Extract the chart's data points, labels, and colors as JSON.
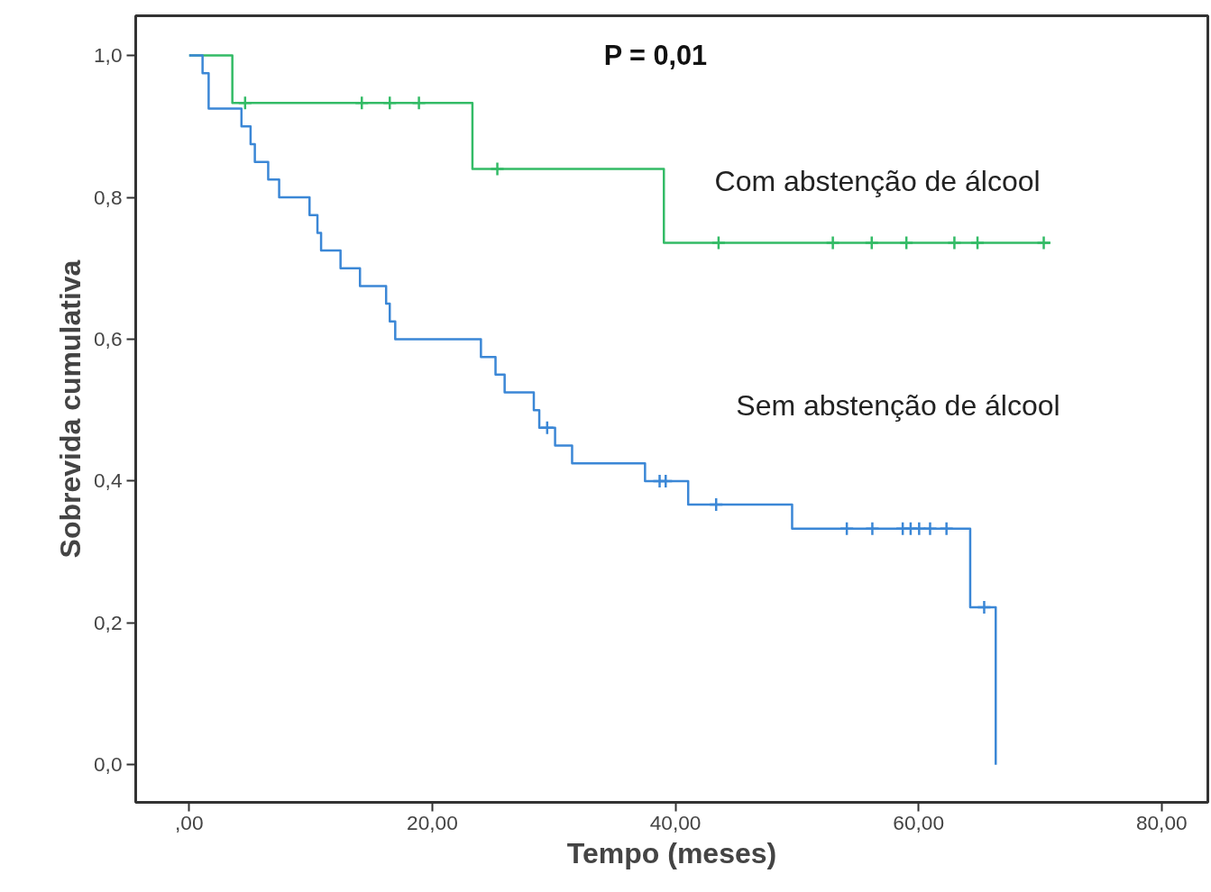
{
  "chart_data": {
    "type": "step",
    "xlabel": "Tempo (meses)",
    "ylabel": "Sobrevida cumulativa",
    "annotations": [
      "P = 0,01"
    ],
    "xlim": [
      -4.4,
      83.8
    ],
    "ylim": [
      -0.053,
      1.056
    ],
    "xticks": [
      {
        "value": 0,
        "label": ",00"
      },
      {
        "value": 20,
        "label": "20,00"
      },
      {
        "value": 40,
        "label": "40,00"
      },
      {
        "value": 60,
        "label": "60,00"
      },
      {
        "value": 80,
        "label": "80,00"
      }
    ],
    "yticks": [
      {
        "value": 0,
        "label": "0,0"
      },
      {
        "value": 0.2,
        "label": "0,2"
      },
      {
        "value": 0.4,
        "label": "0,4"
      },
      {
        "value": 0.6,
        "label": "0,6"
      },
      {
        "value": 0.8,
        "label": "0,8"
      },
      {
        "value": 1.0,
        "label": "1,0"
      }
    ],
    "grid": false,
    "line_style": "solid",
    "series": [
      {
        "name": "Com abstenção de álcool",
        "color": "#33bb66",
        "x": [
          0,
          3.55,
          23.3,
          39.05,
          70.85
        ],
        "values": [
          1,
          0.933,
          0.84,
          0.736,
          0.736
        ]
      },
      {
        "type": "scatter",
        "marker": "cross",
        "color": "#33bb66",
        "x": [
          4.6,
          14.2,
          16.5,
          18.9,
          25.35,
          43.55,
          52.95,
          56.15,
          59.0,
          62.95,
          64.85,
          70.3
        ],
        "values": [
          0.933,
          0.933,
          0.933,
          0.933,
          0.84,
          0.736,
          0.736,
          0.736,
          0.736,
          0.736,
          0.736,
          0.736
        ]
      },
      {
        "name": "Sem abstenção de álcool",
        "color": "#3b87d6",
        "x": [
          0,
          1.1,
          1.6,
          4.3,
          5.05,
          5.4,
          6.5,
          7.4,
          9.9,
          10.55,
          10.85,
          12.45,
          14.05,
          16.2,
          16.5,
          16.95,
          24.0,
          25.2,
          25.95,
          28.35,
          28.8,
          30.1,
          31.5,
          37.5,
          41.05,
          49.6,
          64.25,
          66.35
        ],
        "values": [
          1,
          0.975,
          0.925,
          0.9,
          0.875,
          0.85,
          0.825,
          0.8,
          0.775,
          0.75,
          0.725,
          0.7,
          0.675,
          0.65,
          0.625,
          0.6,
          0.575,
          0.55,
          0.525,
          0.5,
          0.475,
          0.45,
          0.425,
          0.4,
          0.367,
          0.333,
          0.222,
          0
        ]
      },
      {
        "type": "scatter",
        "marker": "cross",
        "color": "#3b87d6",
        "x": [
          29.45,
          38.7,
          39.2,
          43.35,
          54.1,
          56.2,
          58.7,
          59.35,
          60.05,
          60.95,
          62.3,
          65.4
        ],
        "values": [
          0.475,
          0.4,
          0.4,
          0.367,
          0.333,
          0.333,
          0.333,
          0.333,
          0.333,
          0.333,
          0.333,
          0.222
        ]
      }
    ]
  }
}
